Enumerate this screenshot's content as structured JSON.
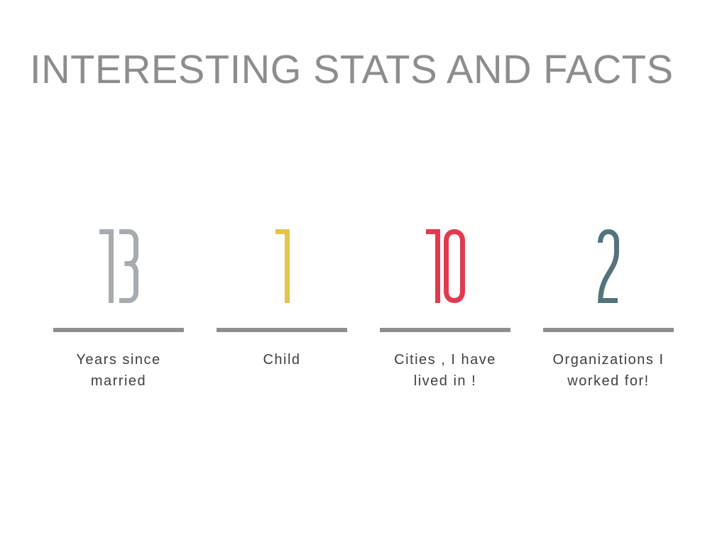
{
  "slide": {
    "title": "INTERESTING STATS AND FACTS",
    "title_color": "#8d8d8d",
    "background_color": "#ffffff",
    "divider_color": "#8f8f8f",
    "label_color": "#3f3f3f",
    "stats": [
      {
        "value": "13",
        "label": "Years since\nmarried",
        "color": "#a6abaf"
      },
      {
        "value": "1",
        "label": "Child",
        "color": "#e5c44c"
      },
      {
        "value": "10",
        "label": "Cities , I have\nlived in !",
        "color": "#e13a4f"
      },
      {
        "value": "2",
        "label": "Organizations I\nworked for!",
        "color": "#53737d"
      }
    ]
  }
}
